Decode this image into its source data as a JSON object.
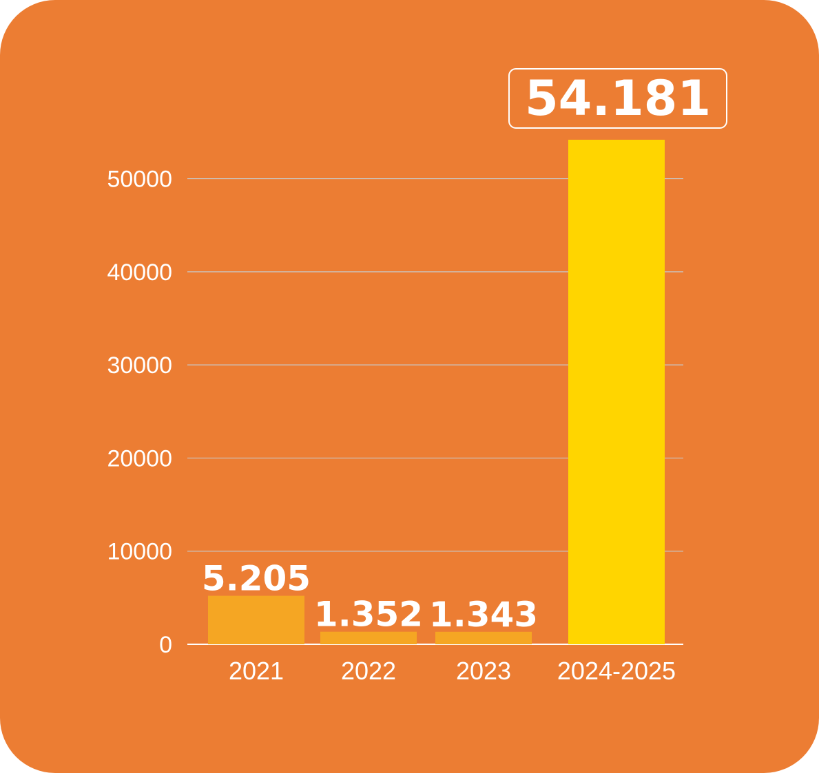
{
  "chart_data": {
    "type": "bar",
    "categories": [
      "2021",
      "2022",
      "2023",
      "2024-2025"
    ],
    "values": [
      5205,
      1352,
      1343,
      54181
    ],
    "data_labels": [
      "5.205",
      "1.352",
      "1.343",
      "54.181"
    ],
    "y_ticks": [
      0,
      10000,
      20000,
      30000,
      40000,
      50000
    ],
    "ylim": [
      0,
      54181
    ],
    "grid": true,
    "colors": {
      "background": "#EC7D33",
      "bar": "#F5A623",
      "highlight_bar": "#FFD500",
      "grid": "#C8C8C8",
      "text": "#FFFFFF"
    }
  }
}
